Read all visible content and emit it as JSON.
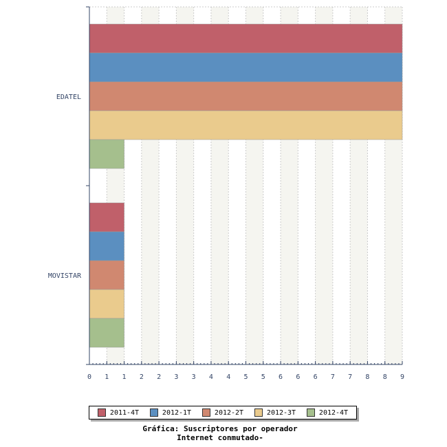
{
  "chart_data": {
    "type": "bar",
    "orientation": "horizontal",
    "title": "Gráfica: Suscriptores por operador",
    "subtitle": "Internet conmutado-",
    "categories": [
      "EDATEL",
      "MOVISTAR"
    ],
    "series": [
      {
        "name": "2011-4T",
        "color": "#c0606a",
        "values": [
          9,
          1
        ]
      },
      {
        "name": "2012-1T",
        "color": "#5b8fc0",
        "values": [
          9,
          1
        ]
      },
      {
        "name": "2012-2T",
        "color": "#d08870",
        "values": [
          9,
          1
        ]
      },
      {
        "name": "2012-3T",
        "color": "#eacb8d",
        "values": [
          9,
          1
        ]
      },
      {
        "name": "2012-4T",
        "color": "#a5bf8d",
        "values": [
          1,
          1
        ]
      }
    ],
    "xlim": [
      0,
      9
    ],
    "x_tick_labels": [
      "0",
      "1",
      "1",
      "2",
      "2",
      "3",
      "3",
      "4",
      "4",
      "5",
      "5",
      "6",
      "6",
      "6",
      "7",
      "7",
      "8",
      "8",
      "9"
    ],
    "grid": true,
    "legend_position": "bottom"
  }
}
